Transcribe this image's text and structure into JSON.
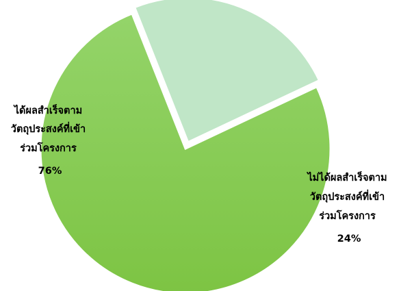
{
  "chart_data": {
    "type": "pie",
    "title": "",
    "slices": [
      {
        "label_lines": [
          "ได้ผลสำเร็จตาม",
          "วัตถุประสงค์ที่เข้า",
          "ร่วมโครงการ"
        ],
        "value": 76,
        "value_label": "76%",
        "color": "#7dc443",
        "color_light": "#94d46a",
        "exploded": false
      },
      {
        "label_lines": [
          "ไม่ได้ผลสำเร็จตาม",
          "วัตถุประสงค์ที่เข้า",
          "ร่วมโครงการ"
        ],
        "value": 24,
        "value_label": "24%",
        "color": "#c0e6c7",
        "exploded": true
      }
    ],
    "start_angle_deg": 64.8,
    "direction": "clockwise",
    "legend": "none",
    "data_labels": "on-slice"
  }
}
